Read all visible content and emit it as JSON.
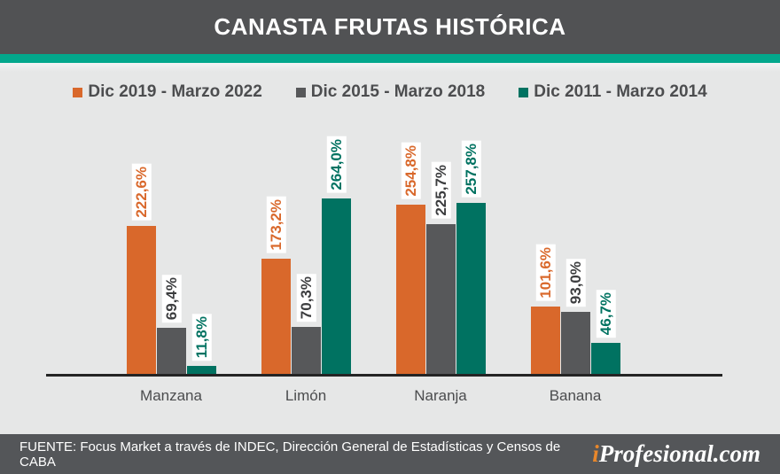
{
  "header": {
    "title": "CANASTA FRUTAS HISTÓRICA"
  },
  "colors": {
    "header_bg": "#515254",
    "accent_strip": "#02A78C",
    "plot_bg": "#E6E7E7",
    "axis": "#242424",
    "series_orange": "#D9682B",
    "series_gray": "#57585A",
    "series_teal": "#007261",
    "brand_i": "#E8872B"
  },
  "chart_data": {
    "type": "bar",
    "title": "CANASTA FRUTAS HISTÓRICA",
    "categories": [
      "Manzana",
      "Limón",
      "Naranja",
      "Banana"
    ],
    "series": [
      {
        "name": "Dic 2019 - Marzo 2022",
        "color": "#D9682B",
        "label_color": "#D9682B",
        "values": [
          222.6,
          173.2,
          254.8,
          101.6
        ],
        "labels": [
          "222,6%",
          "173,2%",
          "254,8%",
          "101,6%"
        ]
      },
      {
        "name": "Dic 2015 - Marzo 2018",
        "color": "#57585A",
        "label_color": "#3C3D3F",
        "values": [
          69.4,
          70.3,
          225.7,
          93.0
        ],
        "labels": [
          "69,4%",
          "70,3%",
          "225,7%",
          "93,0%"
        ]
      },
      {
        "name": "Dic 2011 - Marzo 2014",
        "color": "#007261",
        "label_color": "#007261",
        "values": [
          11.8,
          264.0,
          257.8,
          46.7
        ],
        "labels": [
          "11,8%",
          "264,0%",
          "257,8%",
          "46,7%"
        ]
      }
    ],
    "ylim": [
      0,
      280
    ],
    "xlabel": "",
    "ylabel": "",
    "value_suffix": "%",
    "grid": false,
    "legend_position": "top"
  },
  "footer": {
    "source": "FUENTE: Focus Market  a través de INDEC, Dirección General de Estadísticas y Censos de CABA",
    "brand": {
      "prefix": "i",
      "rest": "Profesional.com"
    }
  }
}
